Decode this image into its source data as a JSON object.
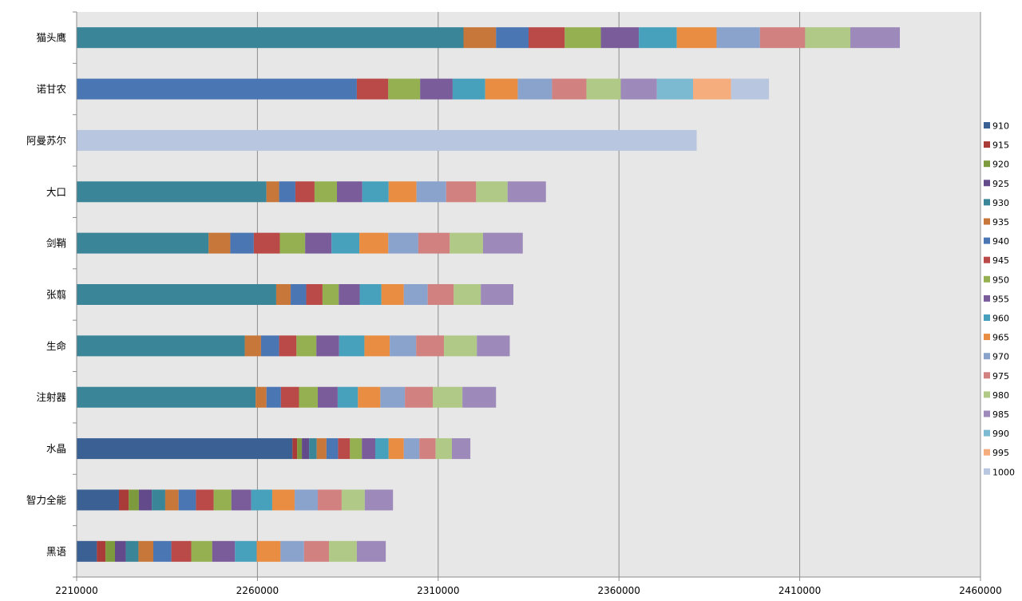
{
  "chart_data": {
    "type": "bar",
    "orientation": "horizontal",
    "stacked": true,
    "title": "",
    "xlabel": "",
    "ylabel": "",
    "xlim": [
      2210000,
      2460000
    ],
    "xticks": [
      2210000,
      2260000,
      2310000,
      2360000,
      2410000,
      2460000
    ],
    "xtick_labels": [
      "2210000",
      "2260000",
      "2310000",
      "2360000",
      "2410000",
      "2460000"
    ],
    "grid": true,
    "legend_position": "right",
    "legend": [
      "910",
      "915",
      "920",
      "925",
      "930",
      "935",
      "940",
      "945",
      "950",
      "955",
      "960",
      "965",
      "970",
      "975",
      "980",
      "985",
      "990",
      "995",
      "1000"
    ],
    "colors": {
      "910": "#3a6094",
      "915": "#a93c38",
      "920": "#7d9a3c",
      "925": "#634a8a",
      "930": "#3a8597",
      "935": "#c7773a",
      "940": "#4a76b4",
      "945": "#b94a48",
      "950": "#94b050",
      "955": "#7a5c9a",
      "960": "#47a1bc",
      "965": "#e98d42",
      "970": "#8aa3cd",
      "975": "#d18180",
      "980": "#b0c986",
      "985": "#9d8aba",
      "990": "#7bbad1",
      "995": "#f5ad7e",
      "1000": "#b9c6df"
    },
    "categories": [
      "猫头鹰",
      "诺甘农",
      "阿曼苏尔",
      "大口",
      "剑鞘",
      "张翦",
      "生命",
      "注射器",
      "水晶",
      "智力全能",
      "黑语"
    ],
    "bars": [
      {
        "category": "猫头鹰",
        "segments": [
          {
            "series": "930",
            "value": 107000
          },
          {
            "series": "935",
            "value": 9000
          },
          {
            "series": "940",
            "value": 9000
          },
          {
            "series": "945",
            "value": 10000
          },
          {
            "series": "950",
            "value": 10000
          },
          {
            "series": "955",
            "value": 10500
          },
          {
            "series": "960",
            "value": 10500
          },
          {
            "series": "965",
            "value": 11000
          },
          {
            "series": "970",
            "value": 12000
          },
          {
            "series": "975",
            "value": 12500
          },
          {
            "series": "980",
            "value": 12500
          },
          {
            "series": "985",
            "value": 13700
          }
        ]
      },
      {
        "category": "诺甘农",
        "segments": [
          {
            "series": "940",
            "value": 77500
          },
          {
            "series": "945",
            "value": 8700
          },
          {
            "series": "950",
            "value": 8800
          },
          {
            "series": "955",
            "value": 9000
          },
          {
            "series": "960",
            "value": 9000
          },
          {
            "series": "965",
            "value": 9000
          },
          {
            "series": "970",
            "value": 9500
          },
          {
            "series": "975",
            "value": 9500
          },
          {
            "series": "980",
            "value": 9500
          },
          {
            "series": "985",
            "value": 10000
          },
          {
            "series": "990",
            "value": 10000
          },
          {
            "series": "995",
            "value": 10500
          },
          {
            "series": "1000",
            "value": 10500
          }
        ]
      },
      {
        "category": "阿曼苏尔",
        "segments": [
          {
            "series": "1000",
            "value": 171500
          }
        ]
      },
      {
        "category": "大口",
        "segments": [
          {
            "series": "930",
            "value": 52500
          },
          {
            "series": "935",
            "value": 3500
          },
          {
            "series": "940",
            "value": 4500
          },
          {
            "series": "945",
            "value": 5300
          },
          {
            "series": "950",
            "value": 6200
          },
          {
            "series": "955",
            "value": 7000
          },
          {
            "series": "960",
            "value": 7300
          },
          {
            "series": "965",
            "value": 7700
          },
          {
            "series": "970",
            "value": 8200
          },
          {
            "series": "975",
            "value": 8300
          },
          {
            "series": "980",
            "value": 8700
          },
          {
            "series": "985",
            "value": 10600
          }
        ]
      },
      {
        "category": "剑鞘",
        "segments": [
          {
            "series": "930",
            "value": 36500
          },
          {
            "series": "935",
            "value": 6000
          },
          {
            "series": "940",
            "value": 6500
          },
          {
            "series": "945",
            "value": 7200
          },
          {
            "series": "950",
            "value": 7000
          },
          {
            "series": "955",
            "value": 7300
          },
          {
            "series": "960",
            "value": 7700
          },
          {
            "series": "965",
            "value": 8000
          },
          {
            "series": "970",
            "value": 8300
          },
          {
            "series": "975",
            "value": 8700
          },
          {
            "series": "980",
            "value": 9200
          },
          {
            "series": "985",
            "value": 11000
          }
        ]
      },
      {
        "category": "张翦",
        "segments": [
          {
            "series": "930",
            "value": 55200
          },
          {
            "series": "935",
            "value": 4000
          },
          {
            "series": "940",
            "value": 4300
          },
          {
            "series": "945",
            "value": 4500
          },
          {
            "series": "950",
            "value": 4500
          },
          {
            "series": "955",
            "value": 5800
          },
          {
            "series": "960",
            "value": 6000
          },
          {
            "series": "965",
            "value": 6200
          },
          {
            "series": "970",
            "value": 6600
          },
          {
            "series": "975",
            "value": 7200
          },
          {
            "series": "980",
            "value": 7500
          },
          {
            "series": "985",
            "value": 9000
          }
        ]
      },
      {
        "category": "生命",
        "segments": [
          {
            "series": "930",
            "value": 46500
          },
          {
            "series": "935",
            "value": 4500
          },
          {
            "series": "940",
            "value": 5000
          },
          {
            "series": "945",
            "value": 4800
          },
          {
            "series": "950",
            "value": 5500
          },
          {
            "series": "955",
            "value": 6300
          },
          {
            "series": "960",
            "value": 7000
          },
          {
            "series": "965",
            "value": 7000
          },
          {
            "series": "970",
            "value": 7300
          },
          {
            "series": "975",
            "value": 7700
          },
          {
            "series": "980",
            "value": 9100
          },
          {
            "series": "985",
            "value": 9100
          }
        ]
      },
      {
        "category": "注射器",
        "segments": [
          {
            "series": "930",
            "value": 49500
          },
          {
            "series": "935",
            "value": 3000
          },
          {
            "series": "940",
            "value": 4000
          },
          {
            "series": "945",
            "value": 5000
          },
          {
            "series": "950",
            "value": 5200
          },
          {
            "series": "955",
            "value": 5500
          },
          {
            "series": "960",
            "value": 5600
          },
          {
            "series": "965",
            "value": 6200
          },
          {
            "series": "970",
            "value": 6800
          },
          {
            "series": "975",
            "value": 7700
          },
          {
            "series": "980",
            "value": 8200
          },
          {
            "series": "985",
            "value": 9300
          }
        ]
      },
      {
        "category": "水晶",
        "segments": [
          {
            "series": "910",
            "value": 59700
          },
          {
            "series": "915",
            "value": 1300
          },
          {
            "series": "920",
            "value": 1300
          },
          {
            "series": "925",
            "value": 2000
          },
          {
            "series": "930",
            "value": 2100
          },
          {
            "series": "935",
            "value": 2700
          },
          {
            "series": "940",
            "value": 3200
          },
          {
            "series": "945",
            "value": 3300
          },
          {
            "series": "950",
            "value": 3300
          },
          {
            "series": "955",
            "value": 3700
          },
          {
            "series": "960",
            "value": 3700
          },
          {
            "series": "965",
            "value": 4200
          },
          {
            "series": "970",
            "value": 4300
          },
          {
            "series": "975",
            "value": 4500
          },
          {
            "series": "980",
            "value": 4500
          },
          {
            "series": "985",
            "value": 5100
          }
        ]
      },
      {
        "category": "智力全能",
        "segments": [
          {
            "series": "910",
            "value": 11700
          },
          {
            "series": "915",
            "value": 2700
          },
          {
            "series": "920",
            "value": 2800
          },
          {
            "series": "925",
            "value": 3600
          },
          {
            "series": "930",
            "value": 3700
          },
          {
            "series": "935",
            "value": 3700
          },
          {
            "series": "940",
            "value": 4800
          },
          {
            "series": "945",
            "value": 4900
          },
          {
            "series": "950",
            "value": 4900
          },
          {
            "series": "955",
            "value": 5500
          },
          {
            "series": "960",
            "value": 5800
          },
          {
            "series": "965",
            "value": 6200
          },
          {
            "series": "970",
            "value": 6400
          },
          {
            "series": "975",
            "value": 6600
          },
          {
            "series": "980",
            "value": 6400
          },
          {
            "series": "985",
            "value": 7800
          }
        ]
      },
      {
        "category": "黑语",
        "segments": [
          {
            "series": "910",
            "value": 5600
          },
          {
            "series": "915",
            "value": 2400
          },
          {
            "series": "920",
            "value": 2600
          },
          {
            "series": "925",
            "value": 3000
          },
          {
            "series": "930",
            "value": 3500
          },
          {
            "series": "935",
            "value": 4100
          },
          {
            "series": "940",
            "value": 5000
          },
          {
            "series": "945",
            "value": 5500
          },
          {
            "series": "950",
            "value": 5800
          },
          {
            "series": "955",
            "value": 6300
          },
          {
            "series": "960",
            "value": 6000
          },
          {
            "series": "965",
            "value": 6600
          },
          {
            "series": "970",
            "value": 6500
          },
          {
            "series": "975",
            "value": 6900
          },
          {
            "series": "980",
            "value": 7700
          },
          {
            "series": "985",
            "value": 8000
          }
        ]
      }
    ]
  }
}
